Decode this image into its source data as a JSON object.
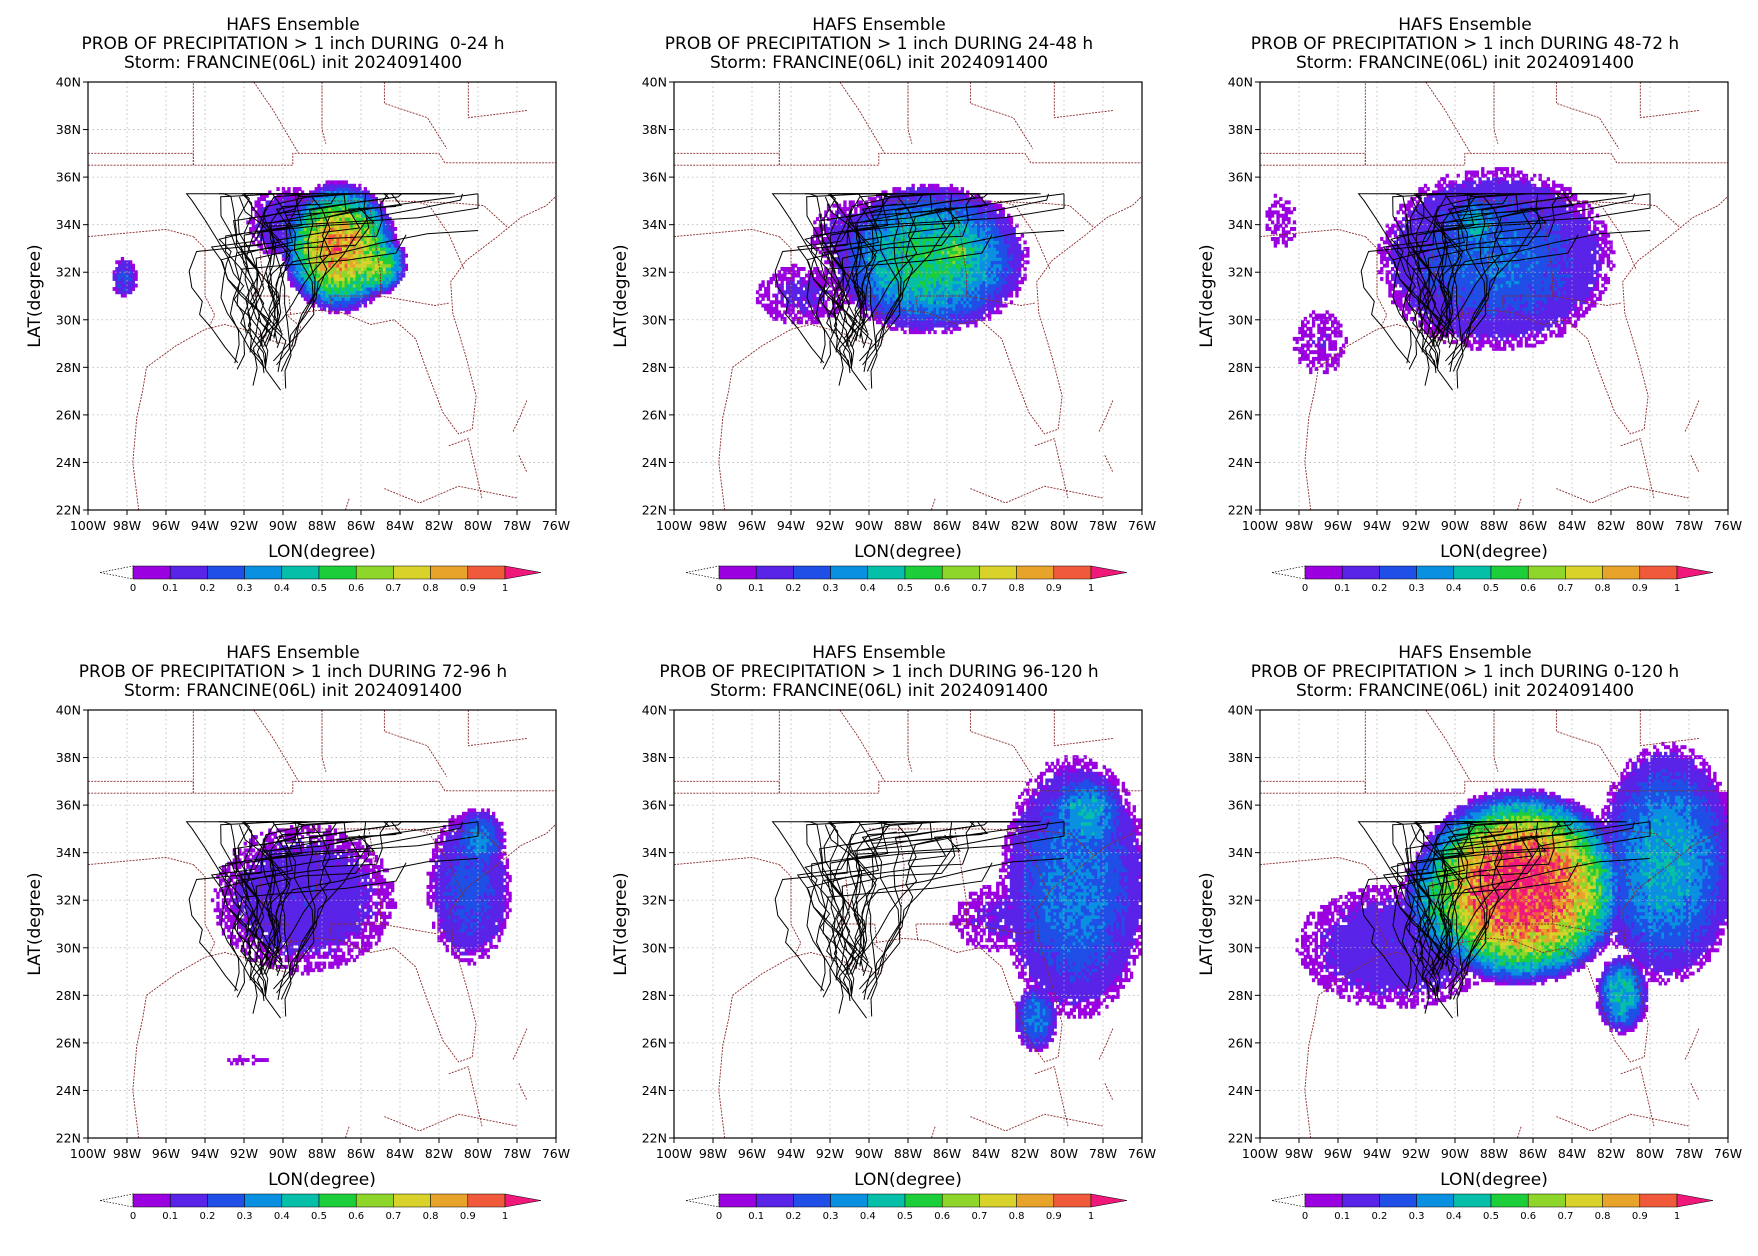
{
  "panels": [
    {
      "header": "HAFS Ensemble",
      "title": "PROB OF PRECIPITATION > 1 inch DURING  0-24 h",
      "storm": "Storm: FRANCINE(06L) init 2024091400"
    },
    {
      "header": "HAFS Ensemble",
      "title": "PROB OF PRECIPITATION > 1 inch DURING 24-48 h",
      "storm": "Storm: FRANCINE(06L) init 2024091400"
    },
    {
      "header": "HAFS Ensemble",
      "title": "PROB OF PRECIPITATION > 1 inch DURING 48-72 h",
      "storm": "Storm: FRANCINE(06L) init 2024091400"
    },
    {
      "header": "HAFS Ensemble",
      "title": "PROB OF PRECIPITATION > 1 inch DURING 72-96 h",
      "storm": "Storm: FRANCINE(06L) init 2024091400"
    },
    {
      "header": "HAFS Ensemble",
      "title": "PROB OF PRECIPITATION > 1 inch DURING 96-120 h",
      "storm": "Storm: FRANCINE(06L) init 2024091400"
    },
    {
      "header": "HAFS Ensemble",
      "title": "PROB OF PRECIPITATION > 1 inch DURING 0-120 h",
      "storm": "Storm: FRANCINE(06L) init 2024091400"
    }
  ],
  "axes": {
    "xlabel": "LON(degree)",
    "ylabel": "LAT(degree)",
    "x_ticks": [
      "100W",
      "98W",
      "96W",
      "94W",
      "92W",
      "90W",
      "88W",
      "86W",
      "84W",
      "82W",
      "80W",
      "78W",
      "76W"
    ],
    "y_ticks": [
      "22N",
      "24N",
      "26N",
      "28N",
      "30N",
      "32N",
      "34N",
      "36N",
      "38N",
      "40N"
    ],
    "x_range": [
      -100,
      -76
    ],
    "y_range": [
      22,
      40
    ]
  },
  "colorbar": {
    "labels": [
      "0",
      "0.1",
      "0.2",
      "0.3",
      "0.4",
      "0.5",
      "0.6",
      "0.7",
      "0.8",
      "0.9",
      "1"
    ],
    "colors": [
      "#9a00e0",
      "#5a23e8",
      "#1f4fe6",
      "#0a90e0",
      "#06bfa8",
      "#1ccf3a",
      "#8fd62a",
      "#d8d22a",
      "#e8a32a",
      "#f05a3a",
      "#f0187a"
    ]
  },
  "chart_data": {
    "type": "heatmap",
    "quantity": "probability of precipitation > 1 inch",
    "value_range": [
      0,
      1
    ],
    "panels": [
      {
        "period": "0-24 h",
        "max_probability_approx": 0.7
      },
      {
        "period": "24-48 h",
        "max_probability_approx": 0.5
      },
      {
        "period": "48-72 h",
        "max_probability_approx": 0.4
      },
      {
        "period": "72-96 h",
        "max_probability_approx": 0.3
      },
      {
        "period": "96-120 h",
        "max_probability_approx": 0.3
      },
      {
        "period": "0-120 h",
        "max_probability_approx": 0.9
      }
    ]
  }
}
